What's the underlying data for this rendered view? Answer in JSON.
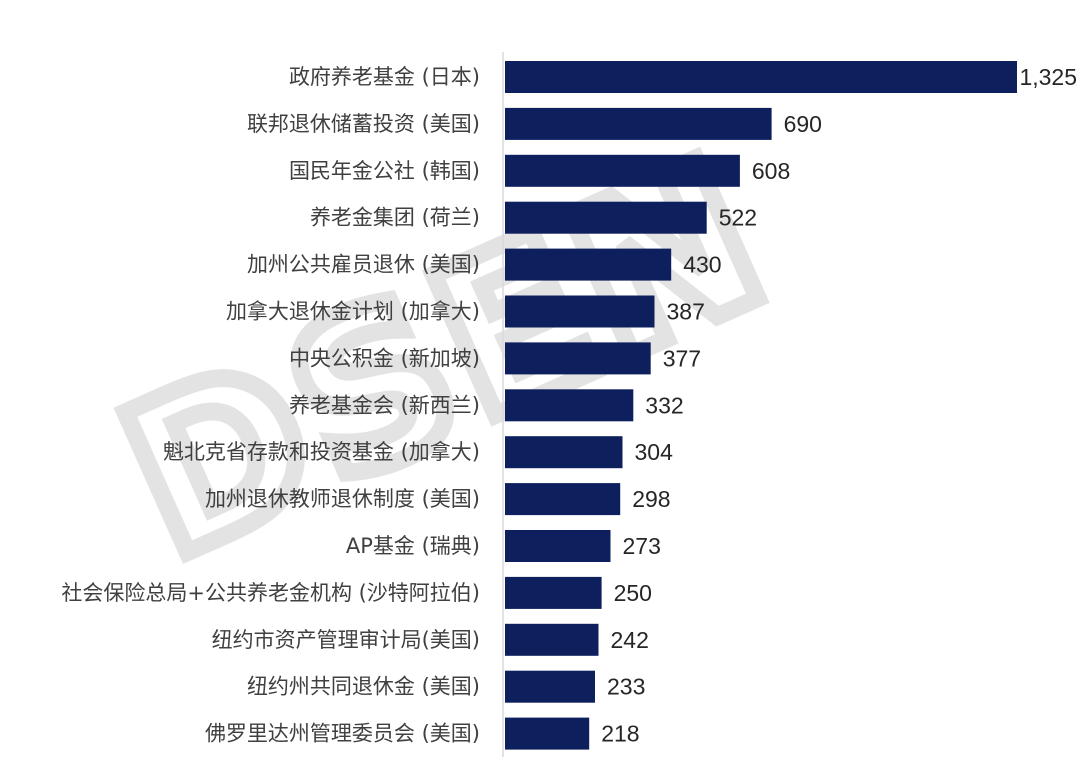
{
  "chart_data": {
    "type": "bar",
    "orientation": "horizontal",
    "categories": [
      "政府养老基金 (日本)",
      "联邦退休储蓄投资 (美国)",
      "国民年金公社 (韩国)",
      "养老金集团 (荷兰)",
      "加州公共雇员退休 (美国)",
      "加拿大退休金计划 (加拿大)",
      "中央公积金 (新加坡)",
      "养老基金会 (新西兰)",
      "魁北克省存款和投资基金 (加拿大)",
      "加州退休教师退休制度 (美国)",
      "AP基金 (瑞典)",
      "社会保险总局+公共养老金机构 (沙特阿拉伯)",
      "纽约市资产管理审计局(美国)",
      "纽约州共同退休金 (美国)",
      "佛罗里达州管理委员会 (美国)"
    ],
    "values": [
      1325,
      690,
      608,
      522,
      430,
      387,
      377,
      332,
      304,
      298,
      273,
      250,
      242,
      233,
      218
    ],
    "value_labels": [
      "1,325",
      "690",
      "608",
      "522",
      "430",
      "387",
      "377",
      "332",
      "304",
      "298",
      "273",
      "250",
      "242",
      "233",
      "218"
    ],
    "title": "",
    "xlabel": "",
    "ylabel": "",
    "xlim": [
      0,
      1325
    ],
    "grid": false,
    "legend": "none",
    "bar_color": "#0d1f5c"
  },
  "watermark": {
    "text": "DSEN"
  }
}
